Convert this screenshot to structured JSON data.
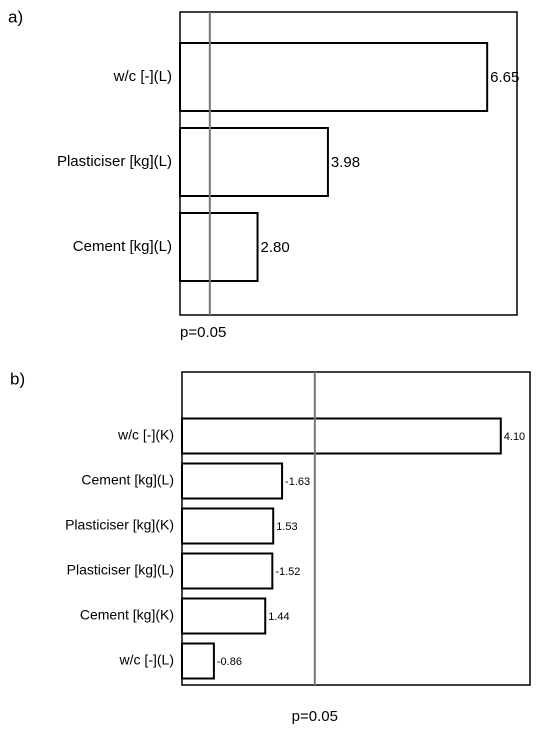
{
  "chart_data": [
    {
      "type": "bar",
      "panel_label": "a)",
      "categories": [
        "w/c [-](L)",
        "Plasticiser [kg](L)",
        "Cement [kg](L)"
      ],
      "values": [
        6.65,
        3.98,
        2.8
      ],
      "value_labels": [
        "6.65",
        "3.98",
        "2.80"
      ],
      "color": "#ffffff",
      "xlim": [
        1.5,
        7.15
      ],
      "ref_line": {
        "value": 2.0,
        "label": "p=0.05"
      }
    },
    {
      "type": "bar",
      "panel_label": "b)",
      "categories": [
        "w/c [-](K)",
        "Cement [kg](L)",
        "Plasticiser [kg](K)",
        "Plasticiser [kg](L)",
        "Cement [kg](K)",
        "w/c [-](L)"
      ],
      "values": [
        4.1,
        -1.63,
        1.53,
        -1.52,
        1.44,
        -0.86
      ],
      "value_labels": [
        "4.10",
        "-1.63",
        "1.53",
        "-1.52",
        "1.44",
        "-0.86"
      ],
      "color": "#ffffff",
      "xlim": [
        0.5,
        4.43
      ],
      "ref_line": {
        "value": 2.0,
        "label": "p=0.05"
      }
    }
  ]
}
